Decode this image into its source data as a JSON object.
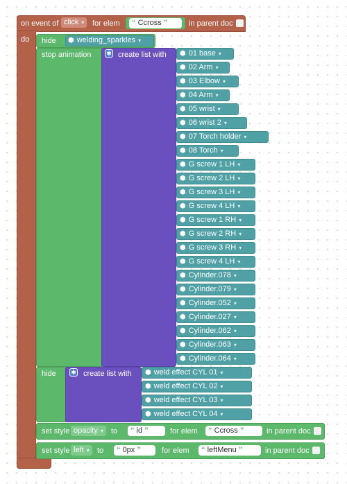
{
  "event_block": {
    "on_event_of_label": "on event of",
    "event_value": "click",
    "for_elem_label": "for elem",
    "elem_value": "Ccross",
    "in_parent_doc_label": "in parent doc",
    "do_label": "do"
  },
  "hide_sparkles": {
    "hide_label": "hide",
    "object_value": "welding_sparkles"
  },
  "stop_animation": {
    "label": "stop animation",
    "create_list_label": "create list with",
    "items": [
      "01 base",
      "02 Arm",
      "03 Elbow",
      "04 Arm",
      "05 wrist",
      "06 wrist 2",
      "07 Torch holder",
      "08 Torch",
      "G screw 1 LH",
      "G screw 2 LH",
      "G screw 3 LH",
      "G screw 4 LH",
      "G screw 1 RH",
      "G screw 2 RH",
      "G screw 3 RH",
      "G screw 4 LH",
      "Cylinder.078",
      "Cylinder.079",
      "Cylinder.052",
      "Cylinder.027",
      "Cylinder.062",
      "Cylinder.063",
      "Cylinder.064"
    ]
  },
  "hide_welds": {
    "hide_label": "hide",
    "create_list_label": "create list with",
    "items": [
      "weld effect CYL 01",
      "weld effect CYL 02",
      "weld effect CYL 03",
      "weld effect CYL 04"
    ]
  },
  "set_style_opacity": {
    "set_style_label": "set style",
    "property_value": "opacity",
    "to_label": "to",
    "value": "id",
    "for_elem_label": "for elem",
    "elem_value": "Ccross",
    "in_parent_doc_label": "in parent doc"
  },
  "set_style_left": {
    "set_style_label": "set style",
    "property_value": "left",
    "to_label": "to",
    "value": "0px",
    "for_elem_label": "for elem",
    "elem_value": "leftMenu",
    "in_parent_doc_label": "in parent doc"
  }
}
